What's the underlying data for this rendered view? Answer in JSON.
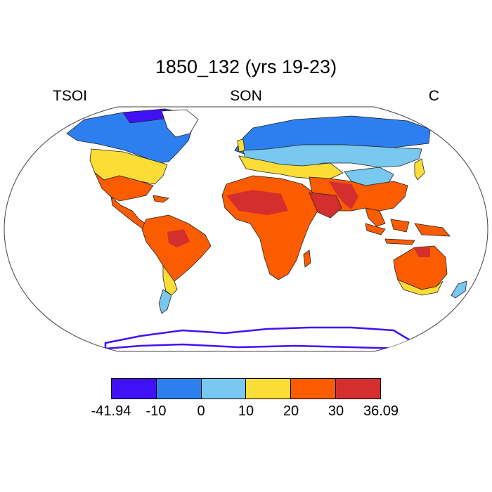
{
  "title": "1850_132 (yrs 19-23)",
  "left_label": "TSOI",
  "center_label": "SON",
  "right_label": "C",
  "colorbar": {
    "colors": [
      "#4011f6",
      "#2d7ff0",
      "#78c8f0",
      "#fcdd36",
      "#fc5c00",
      "#d52e2e"
    ],
    "tick_labels": [
      "-41.94",
      "-10",
      "0",
      "10",
      "20",
      "30",
      "36.09"
    ]
  }
}
